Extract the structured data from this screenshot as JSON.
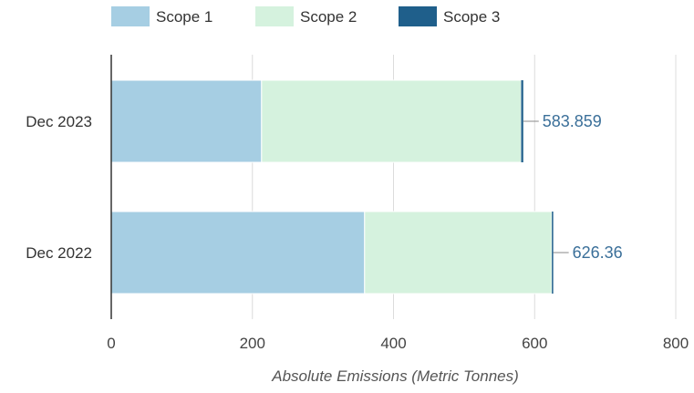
{
  "chart_data": {
    "type": "bar",
    "orientation": "horizontal",
    "stacked": true,
    "categories": [
      "Dec 2023",
      "Dec 2022"
    ],
    "series": [
      {
        "name": "Scope 1",
        "color": "#a6cee3",
        "values": [
          213,
          359
        ]
      },
      {
        "name": "Scope 2",
        "color": "#d5f2de",
        "values": [
          367.9,
          265.4
        ]
      },
      {
        "name": "Scope 3",
        "color": "#1f5f8b",
        "values": [
          2.959,
          1.96
        ]
      }
    ],
    "totals": [
      "583.859",
      "626.36"
    ],
    "xlabel": "Absolute Emissions (Metric Tonnes)",
    "ylabel": "",
    "xlim": [
      0,
      800
    ],
    "ticks": [
      0,
      200,
      400,
      600,
      800
    ],
    "grid": true,
    "legend": "top",
    "label_color": "#3a6f99",
    "grid_color": "#dcdcdc"
  }
}
